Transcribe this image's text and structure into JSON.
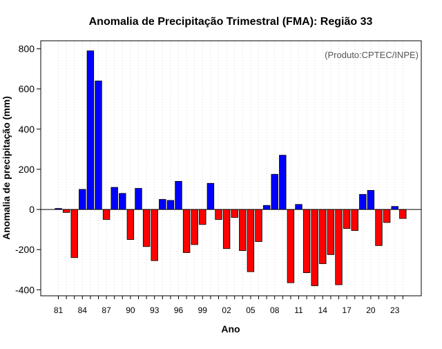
{
  "chart_data": {
    "type": "bar",
    "title": "Anomalia de Precipitação Trimestral (FMA): Região 33",
    "xlabel": "Ano",
    "ylabel": "Anomalia de precipitação (mm)",
    "annotation": "(Produto:CPTEC/INPE)",
    "ylim": [
      -430,
      840
    ],
    "y_ticks": [
      -400,
      -200,
      0,
      200,
      400,
      600,
      800
    ],
    "grid": "vertical dotted",
    "positive_color": "#0000ff",
    "negative_color": "#ff0000",
    "x_tick_labels": [
      "81",
      "84",
      "87",
      "90",
      "93",
      "96",
      "99",
      "02",
      "05",
      "08",
      "11",
      "14",
      "17",
      "20",
      "23"
    ],
    "x_tick_years": [
      1981,
      1984,
      1987,
      1990,
      1993,
      1996,
      1999,
      2002,
      2005,
      2008,
      2011,
      2014,
      2017,
      2020,
      2023
    ],
    "years": [
      1981,
      1982,
      1983,
      1984,
      1985,
      1986,
      1987,
      1988,
      1989,
      1990,
      1991,
      1992,
      1993,
      1994,
      1995,
      1996,
      1997,
      1998,
      1999,
      2000,
      2001,
      2002,
      2003,
      2004,
      2005,
      2006,
      2007,
      2008,
      2009,
      2010,
      2011,
      2012,
      2013,
      2014,
      2015,
      2016,
      2017,
      2018,
      2019,
      2020,
      2021,
      2022,
      2023,
      2024
    ],
    "values": [
      5,
      -15,
      -240,
      100,
      790,
      640,
      -50,
      110,
      80,
      -150,
      105,
      -185,
      -255,
      50,
      45,
      140,
      -215,
      -175,
      -75,
      130,
      -50,
      -195,
      -40,
      -205,
      -310,
      -160,
      20,
      175,
      270,
      -365,
      25,
      -315,
      -380,
      -270,
      -225,
      -375,
      -95,
      -105,
      75,
      95,
      -180,
      -65,
      15,
      -45
    ]
  }
}
